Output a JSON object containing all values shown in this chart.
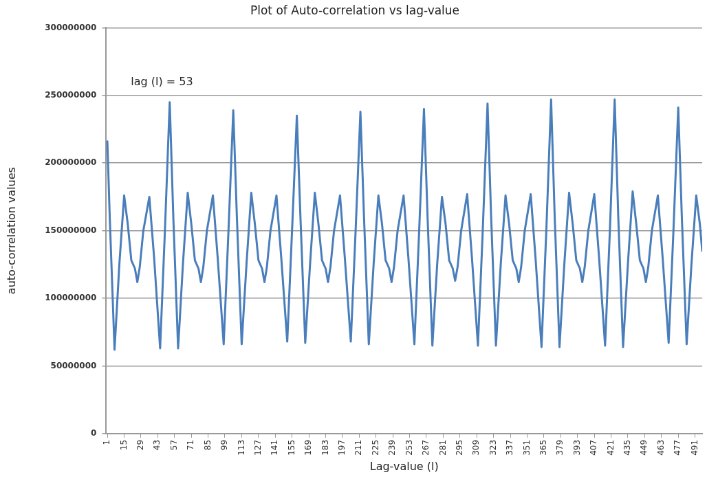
{
  "chart_data": {
    "type": "line",
    "title": "Plot of Auto-correlation vs lag-value",
    "xlabel": "Lag-value (l)",
    "ylabel": "auto-correlation values",
    "annotations": [
      "lag (l) = 53"
    ],
    "series": [
      {
        "color": "#4a7ebb",
        "x": [
          1,
          3,
          7,
          11,
          15,
          18,
          21,
          24,
          26,
          28,
          31,
          36,
          40,
          45,
          49,
          53,
          56,
          60,
          64,
          68,
          71,
          74,
          77,
          79,
          81,
          84,
          89,
          93,
          98,
          102,
          106,
          109,
          113,
          117,
          121,
          124,
          127,
          130,
          132,
          134,
          137,
          142,
          146,
          151,
          155,
          159,
          162,
          166,
          170,
          174,
          177,
          180,
          183,
          185,
          187,
          190,
          195,
          199,
          204,
          208,
          212,
          215,
          219,
          223,
          227,
          230,
          233,
          236,
          238,
          240,
          243,
          248,
          252,
          257,
          261,
          265,
          268,
          272,
          276,
          280,
          283,
          286,
          289,
          291,
          293,
          296,
          301,
          305,
          310,
          314,
          318,
          321,
          325,
          329,
          333,
          336,
          339,
          342,
          344,
          346,
          349,
          354,
          358,
          363,
          367,
          371,
          374,
          378,
          382,
          386,
          389,
          392,
          395,
          397,
          399,
          402,
          407,
          411,
          416,
          420,
          424,
          427,
          431,
          435,
          439,
          442,
          445,
          448,
          450,
          452,
          455,
          460,
          464,
          469,
          473,
          477,
          480,
          484,
          488,
          492,
          495,
          497
        ],
        "values": [
          216000000,
          160000000,
          62000000,
          125000000,
          176000000,
          155000000,
          128000000,
          122000000,
          112000000,
          123000000,
          150000000,
          175000000,
          130000000,
          63000000,
          150000000,
          245000000,
          160000000,
          63000000,
          125000000,
          178000000,
          155000000,
          128000000,
          122000000,
          112000000,
          123000000,
          150000000,
          176000000,
          130000000,
          66000000,
          150000000,
          239000000,
          160000000,
          66000000,
          125000000,
          178000000,
          155000000,
          128000000,
          122000000,
          112000000,
          123000000,
          150000000,
          176000000,
          130000000,
          68000000,
          150000000,
          235000000,
          160000000,
          67000000,
          125000000,
          178000000,
          155000000,
          128000000,
          122000000,
          112000000,
          123000000,
          150000000,
          176000000,
          130000000,
          68000000,
          150000000,
          238000000,
          160000000,
          66000000,
          125000000,
          176000000,
          155000000,
          128000000,
          122000000,
          112000000,
          123000000,
          150000000,
          176000000,
          130000000,
          66000000,
          150000000,
          240000000,
          160000000,
          65000000,
          125000000,
          175000000,
          155000000,
          128000000,
          122000000,
          113000000,
          123000000,
          150000000,
          177000000,
          130000000,
          65000000,
          150000000,
          244000000,
          160000000,
          65000000,
          125000000,
          176000000,
          155000000,
          128000000,
          122000000,
          112000000,
          123000000,
          150000000,
          177000000,
          130000000,
          64000000,
          150000000,
          247000000,
          160000000,
          64000000,
          125000000,
          178000000,
          155000000,
          128000000,
          122000000,
          112000000,
          123000000,
          150000000,
          177000000,
          130000000,
          65000000,
          150000000,
          247000000,
          160000000,
          64000000,
          125000000,
          179000000,
          155000000,
          128000000,
          122000000,
          112000000,
          123000000,
          150000000,
          176000000,
          130000000,
          67000000,
          150000000,
          241000000,
          160000000,
          66000000,
          125000000,
          176000000,
          155000000,
          135000000
        ]
      }
    ],
    "xlim": [
      0,
      497
    ],
    "xticks": [
      1,
      15,
      29,
      43,
      57,
      71,
      85,
      99,
      113,
      127,
      141,
      155,
      169,
      183,
      197,
      211,
      225,
      239,
      253,
      267,
      281,
      295,
      309,
      323,
      337,
      351,
      365,
      379,
      393,
      407,
      421,
      435,
      449,
      463,
      477,
      491
    ],
    "ylim": [
      0,
      300000000
    ],
    "yticks": [
      0,
      50000000,
      100000000,
      150000000,
      200000000,
      250000000,
      300000000
    ],
    "grid": "y",
    "legend": false,
    "marker": "none",
    "line_style": "solid"
  }
}
